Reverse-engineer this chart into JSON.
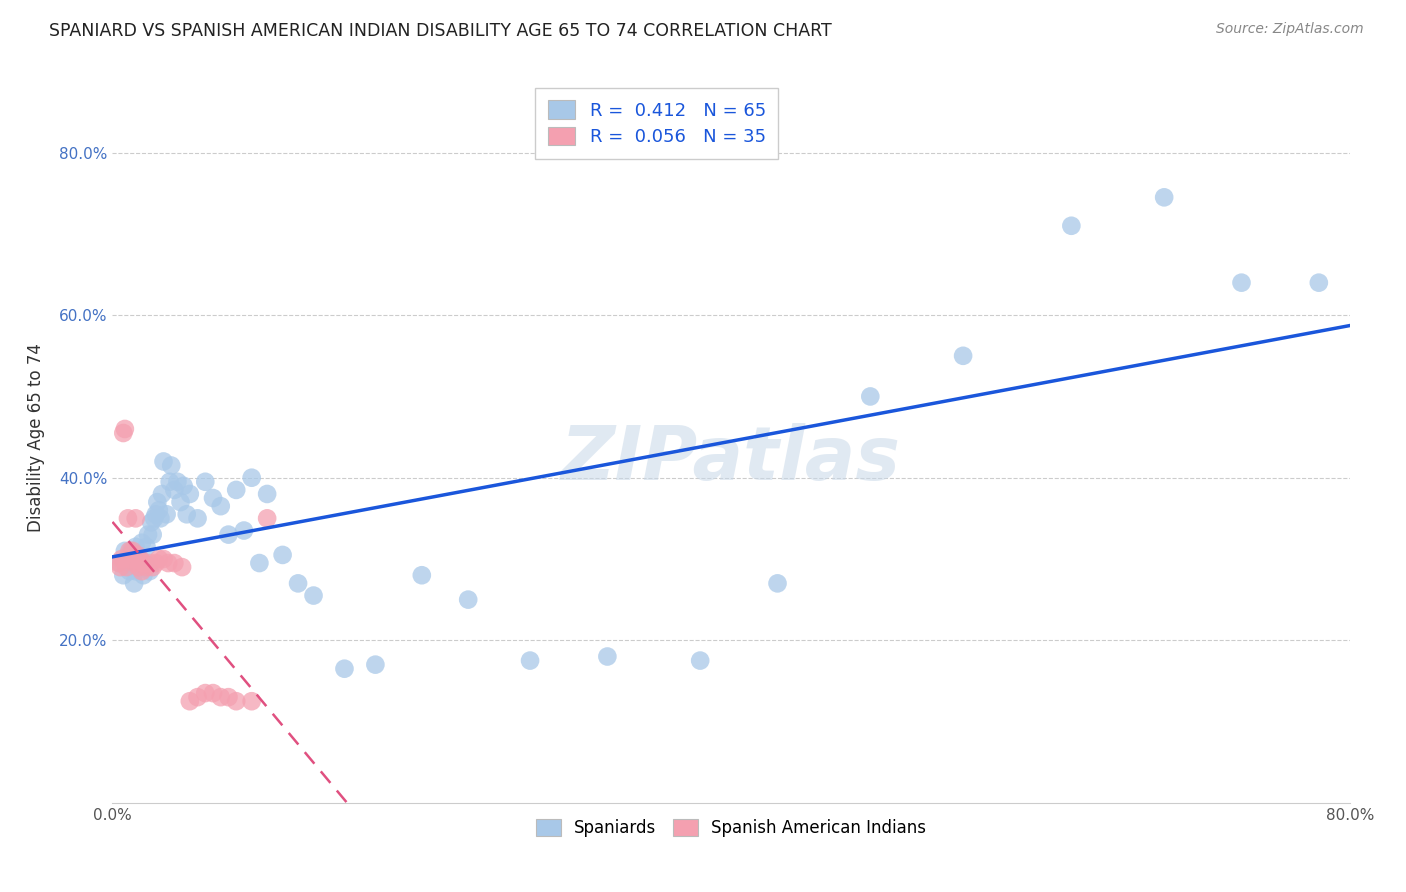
{
  "title": "SPANIARD VS SPANISH AMERICAN INDIAN DISABILITY AGE 65 TO 74 CORRELATION CHART",
  "source": "Source: ZipAtlas.com",
  "ylabel": "Disability Age 65 to 74",
  "xlim": [
    0.0,
    0.8
  ],
  "ylim": [
    0.0,
    0.9
  ],
  "x_ticks": [
    0.0,
    0.1,
    0.2,
    0.3,
    0.4,
    0.5,
    0.6,
    0.7,
    0.8
  ],
  "x_tick_labels": [
    "0.0%",
    "",
    "",
    "",
    "",
    "",
    "",
    "",
    "80.0%"
  ],
  "y_ticks": [
    0.2,
    0.4,
    0.6,
    0.8
  ],
  "y_tick_labels": [
    "20.0%",
    "40.0%",
    "60.0%",
    "80.0%"
  ],
  "spaniards_R": 0.412,
  "spaniards_N": 65,
  "spanish_ai_R": 0.056,
  "spanish_ai_N": 35,
  "spaniards_color": "#a8c8e8",
  "spanish_ai_color": "#f4a0b0",
  "spaniards_line_color": "#1a56db",
  "spanish_ai_line_color": "#e05080",
  "watermark": "ZIPatlas",
  "spaniards_x": [
    0.005,
    0.007,
    0.008,
    0.009,
    0.01,
    0.011,
    0.012,
    0.013,
    0.014,
    0.015,
    0.015,
    0.016,
    0.017,
    0.018,
    0.019,
    0.02,
    0.021,
    0.022,
    0.023,
    0.024,
    0.025,
    0.026,
    0.027,
    0.028,
    0.029,
    0.03,
    0.031,
    0.032,
    0.033,
    0.035,
    0.037,
    0.038,
    0.04,
    0.042,
    0.044,
    0.046,
    0.048,
    0.05,
    0.055,
    0.06,
    0.065,
    0.07,
    0.075,
    0.08,
    0.085,
    0.09,
    0.095,
    0.1,
    0.11,
    0.12,
    0.13,
    0.15,
    0.17,
    0.2,
    0.23,
    0.27,
    0.32,
    0.38,
    0.43,
    0.49,
    0.55,
    0.62,
    0.68,
    0.73,
    0.78
  ],
  "spaniards_y": [
    0.295,
    0.28,
    0.31,
    0.295,
    0.3,
    0.285,
    0.31,
    0.295,
    0.27,
    0.315,
    0.285,
    0.305,
    0.29,
    0.295,
    0.32,
    0.28,
    0.295,
    0.315,
    0.33,
    0.285,
    0.345,
    0.33,
    0.35,
    0.355,
    0.37,
    0.36,
    0.35,
    0.38,
    0.42,
    0.355,
    0.395,
    0.415,
    0.385,
    0.395,
    0.37,
    0.39,
    0.355,
    0.38,
    0.35,
    0.395,
    0.375,
    0.365,
    0.33,
    0.385,
    0.335,
    0.4,
    0.295,
    0.38,
    0.305,
    0.27,
    0.255,
    0.165,
    0.17,
    0.28,
    0.25,
    0.175,
    0.18,
    0.175,
    0.27,
    0.5,
    0.55,
    0.71,
    0.745,
    0.64,
    0.64
  ],
  "spanish_ai_x": [
    0.004,
    0.005,
    0.006,
    0.007,
    0.008,
    0.009,
    0.01,
    0.011,
    0.012,
    0.013,
    0.014,
    0.015,
    0.016,
    0.017,
    0.018,
    0.019,
    0.02,
    0.022,
    0.024,
    0.026,
    0.028,
    0.03,
    0.033,
    0.036,
    0.04,
    0.045,
    0.05,
    0.055,
    0.06,
    0.065,
    0.07,
    0.075,
    0.08,
    0.09,
    0.1
  ],
  "spanish_ai_y": [
    0.295,
    0.29,
    0.3,
    0.455,
    0.46,
    0.29,
    0.35,
    0.31,
    0.3,
    0.31,
    0.295,
    0.35,
    0.305,
    0.29,
    0.3,
    0.285,
    0.295,
    0.29,
    0.295,
    0.29,
    0.295,
    0.3,
    0.3,
    0.295,
    0.295,
    0.29,
    0.125,
    0.13,
    0.135,
    0.135,
    0.13,
    0.13,
    0.125,
    0.125,
    0.35
  ]
}
